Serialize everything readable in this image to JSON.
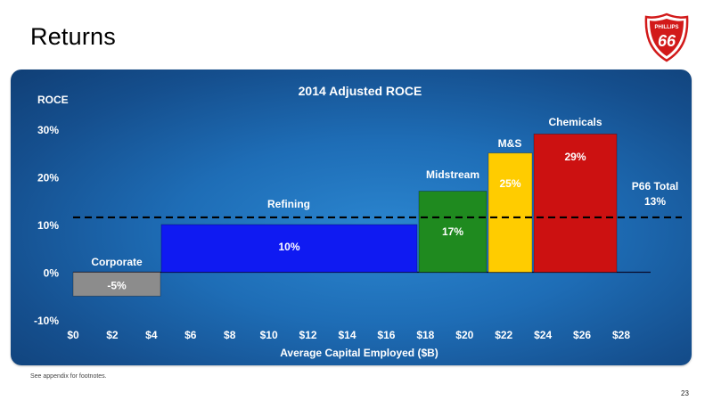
{
  "slide": {
    "title": "Returns",
    "footnote": "See appendix for footnotes.",
    "page_number": "23",
    "logo": {
      "icon": "phillips-66-shield-logo",
      "text_top": "PHILLIPS",
      "text_main": "66"
    }
  },
  "colors": {
    "Corporate": "#8c8c8c",
    "Refining": "#0f1af2",
    "Midstream": "#1f8a1f",
    "M&S": "#ffcc00",
    "Chemicals": "#cc1111",
    "total_line": "#000000",
    "axis_text": "#ffffff"
  },
  "chart_data": {
    "type": "bar",
    "variant": "variable-width (marimekko) bar",
    "title": "2014 Adjusted ROCE",
    "xlabel": "Average Capital Employed ($B)",
    "ylabel": "ROCE",
    "xlim": [
      0,
      28
    ],
    "ylim": [
      -10,
      30
    ],
    "x_ticks": [
      "$0",
      "$2",
      "$4",
      "$6",
      "$8",
      "$10",
      "$12",
      "$14",
      "$16",
      "$18",
      "$20",
      "$22",
      "$24",
      "$26",
      "$28"
    ],
    "x_tick_values": [
      0,
      2,
      4,
      6,
      8,
      10,
      12,
      14,
      16,
      18,
      20,
      22,
      24,
      26,
      28
    ],
    "y_ticks": [
      "-10%",
      "0%",
      "10%",
      "20%",
      "30%"
    ],
    "y_tick_values": [
      -10,
      0,
      10,
      20,
      30
    ],
    "grid": false,
    "segments": [
      {
        "name": "Corporate",
        "x_start": 0,
        "x_end": 5,
        "value": -5,
        "label": "-5%"
      },
      {
        "name": "Refining",
        "x_start": 5,
        "x_end": 20,
        "value": 10,
        "label": "10%"
      },
      {
        "name": "Midstream",
        "x_start": 20,
        "x_end": 24,
        "value": 17,
        "label": "17%"
      },
      {
        "name": "M&S",
        "x_start": 24,
        "x_end": 27,
        "value": 25,
        "label": "25%"
      },
      {
        "name": "Chemicals",
        "x_start": 27,
        "x_end": 32,
        "value": 29,
        "label": "29%"
      }
    ],
    "reference_line": {
      "name": "P66 Total",
      "value": 13,
      "label": "13%",
      "style": "dashed"
    }
  }
}
